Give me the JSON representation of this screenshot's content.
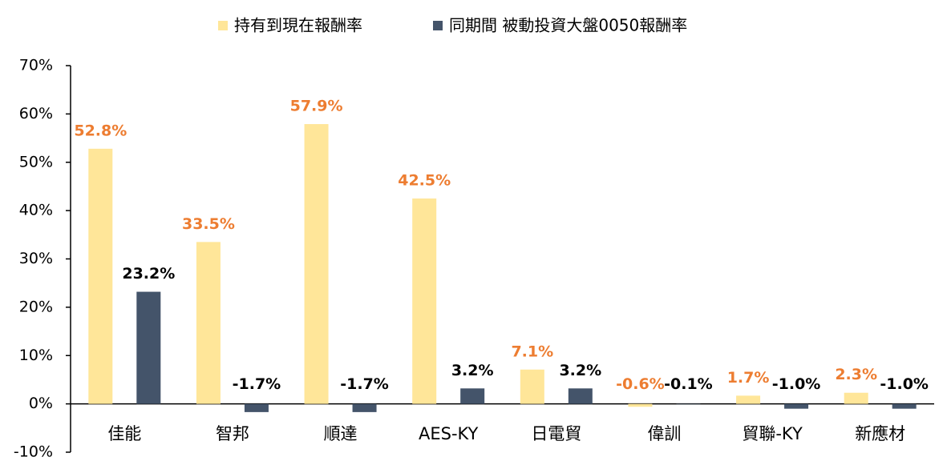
{
  "chart_data": {
    "type": "bar",
    "categories": [
      "佳能",
      "智邦",
      "順達",
      "AES-KY",
      "日電貿",
      "偉訓",
      "貿聯-KY",
      "新應材"
    ],
    "series": [
      {
        "name": "持有到現在報酬率",
        "color": "#FFE699",
        "label_color": "#ED7D31",
        "values": [
          52.8,
          33.5,
          57.9,
          42.5,
          7.1,
          -0.6,
          1.7,
          2.3
        ],
        "value_labels": [
          "52.8%",
          "33.5%",
          "57.9%",
          "42.5%",
          "7.1%",
          "-0.6%",
          "1.7%",
          "2.3%"
        ]
      },
      {
        "name": "同期間 被動投資大盤0050報酬率",
        "color": "#44546A",
        "label_color": "#000000",
        "values": [
          23.2,
          -1.7,
          -1.7,
          3.2,
          3.2,
          -0.1,
          -1.0,
          -1.0
        ],
        "value_labels": [
          "23.2%",
          "-1.7%",
          "-1.7%",
          "3.2%",
          "3.2%",
          "-0.1%",
          "-1.0%",
          "-1.0%"
        ]
      }
    ],
    "ylim": [
      -10,
      70
    ],
    "yticks": [
      {
        "value": -10,
        "label": "-10%"
      },
      {
        "value": 0,
        "label": "0%"
      },
      {
        "value": 10,
        "label": "10%"
      },
      {
        "value": 20,
        "label": "20%"
      },
      {
        "value": 30,
        "label": "30%"
      },
      {
        "value": 40,
        "label": "40%"
      },
      {
        "value": 50,
        "label": "50%"
      },
      {
        "value": 60,
        "label": "60%"
      },
      {
        "value": 70,
        "label": "70%"
      }
    ],
    "legend": "top"
  }
}
